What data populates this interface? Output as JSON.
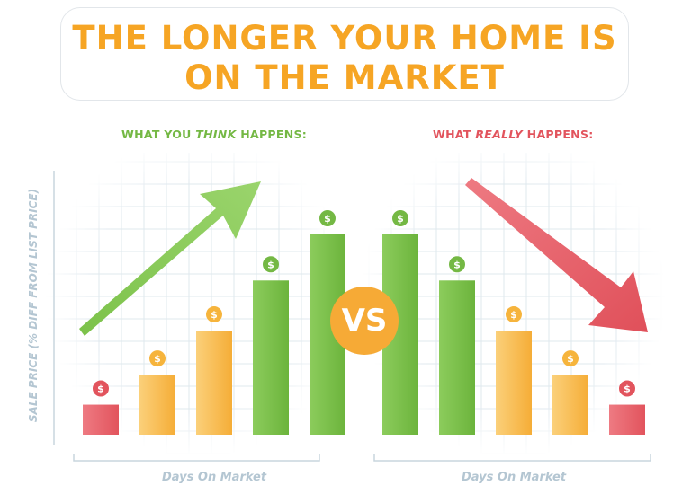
{
  "title": {
    "line1": "THE LONGER YOUR HOME IS",
    "line2": "ON THE MARKET"
  },
  "y_axis_label": "SALE PRICE (% DIFF FROM LIST PRICE)",
  "vs_label": "VS",
  "colors": {
    "title": "#f6a524",
    "green": "#74b844",
    "orange": "#f6b43c",
    "red": "#e2545d",
    "axis": "#b4c6d2"
  },
  "chart_data": [
    {
      "type": "bar",
      "title_parts": {
        "pre": "WHAT YOU ",
        "em": "THINK",
        "post": " HAPPENS:"
      },
      "xlabel": "Days On Market",
      "ylabel": "SALE PRICE (% DIFF FROM LIST PRICE)",
      "ylim": [
        0,
        100
      ],
      "values": [
        15,
        30,
        52,
        77,
        100
      ],
      "bar_colors": [
        "red",
        "orange",
        "orange",
        "green",
        "green"
      ],
      "marker_icon": "dollar-coin-icon",
      "trend_arrow": "up",
      "grid": true
    },
    {
      "type": "bar",
      "title_parts": {
        "pre": "WHAT ",
        "em": "REALLY",
        "post": " HAPPENS:"
      },
      "xlabel": "Days On Market",
      "ylabel": "SALE PRICE (% DIFF FROM LIST PRICE)",
      "ylim": [
        0,
        100
      ],
      "values": [
        100,
        77,
        52,
        30,
        15
      ],
      "bar_colors": [
        "green",
        "green",
        "orange",
        "orange",
        "red"
      ],
      "marker_icon": "dollar-coin-icon",
      "trend_arrow": "down",
      "grid": true
    }
  ]
}
